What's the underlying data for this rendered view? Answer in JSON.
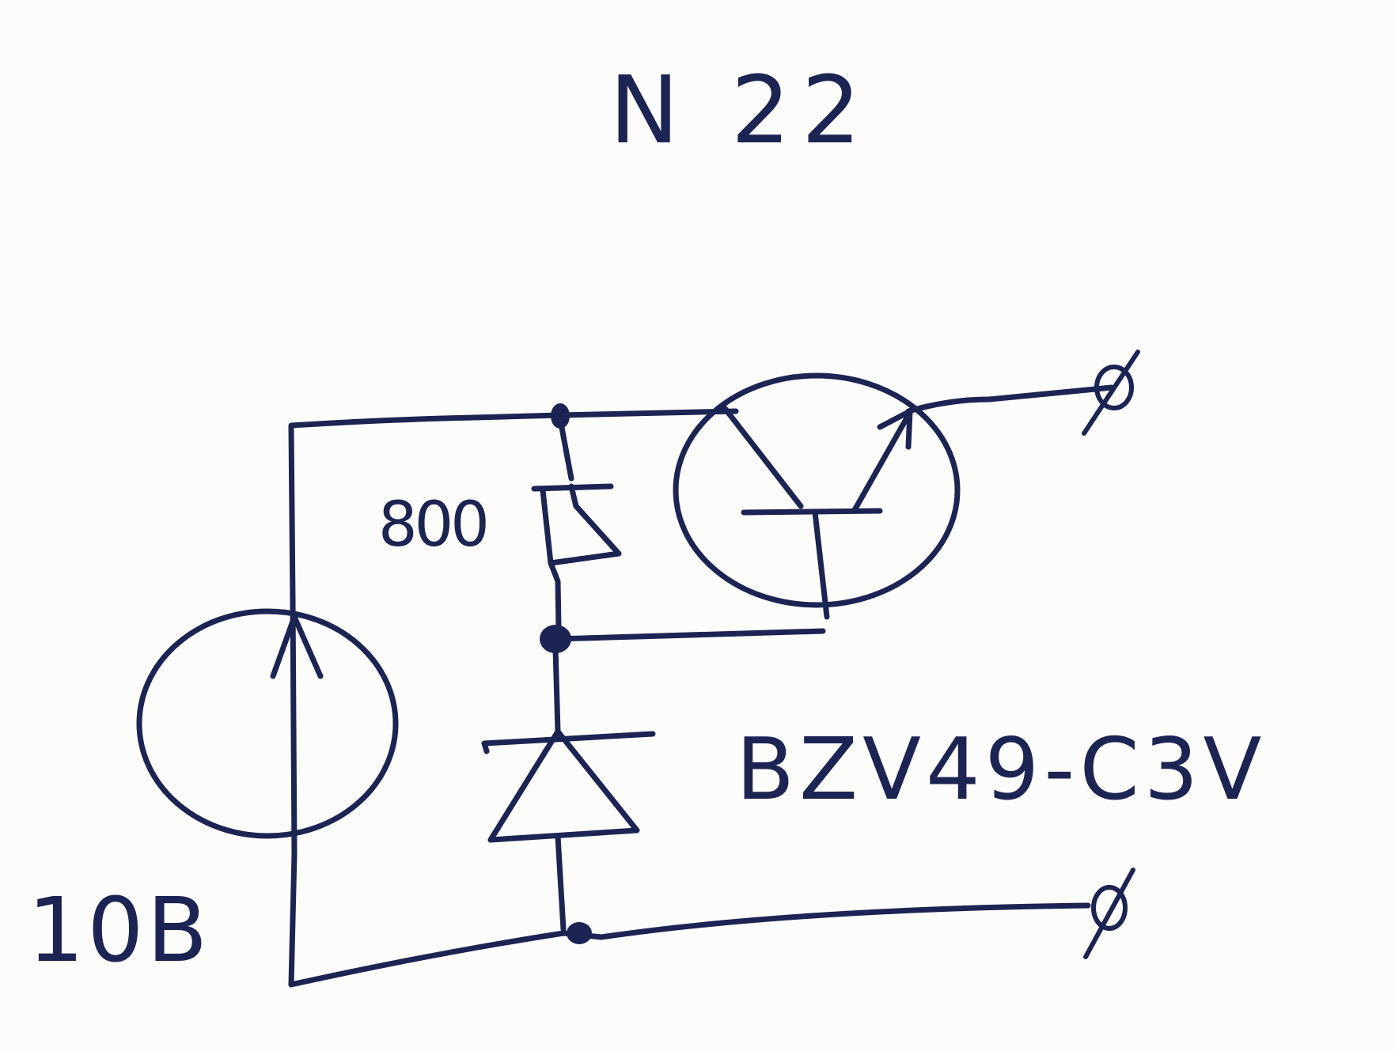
{
  "title": "N 22",
  "labels": {
    "source_voltage": "10B",
    "resistor_value": "800",
    "zener_part": "BZV49-C3V"
  },
  "terminals": {
    "output_top": "ø",
    "output_bottom": "ø"
  },
  "colors": {
    "ink": "#1c2454",
    "paper": "#fcfcfa"
  }
}
